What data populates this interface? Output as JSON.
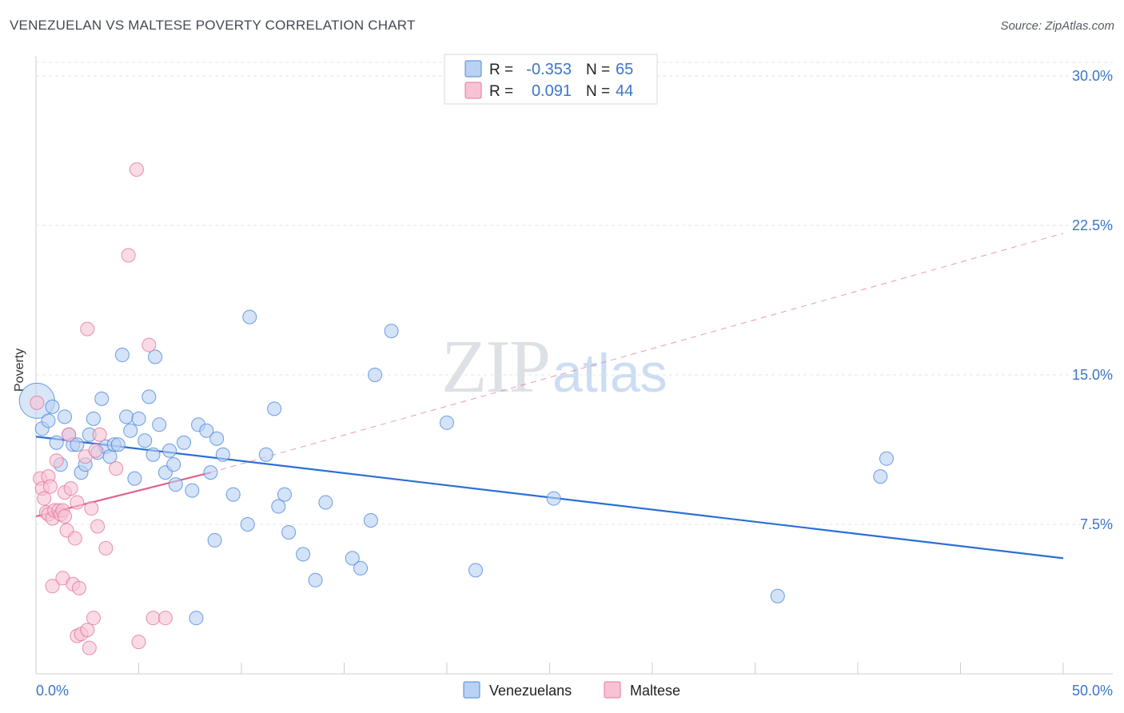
{
  "title": "VENEZUELAN VS MALTESE POVERTY CORRELATION CHART",
  "source": "Source: ZipAtlas.com",
  "watermark": {
    "zip": "ZIP",
    "atlas": "atlas"
  },
  "colors": {
    "blue": "#4a86e0",
    "blue_fill": "#b9d1f3",
    "pink": "#e4749c",
    "pink_fill": "#f7c3d4",
    "axis_text": "#3b76c8",
    "blue_line": "#2a6fd6",
    "pink_line": "#e06090"
  },
  "stats": [
    {
      "series": "Venezuelans",
      "r_label": "R =",
      "r_value": "-0.353",
      "n_label": "N =",
      "n_value": "65"
    },
    {
      "series": "Maltese",
      "r_label": "R =",
      "r_value": "0.091",
      "n_label": "N =",
      "n_value": "44"
    }
  ],
  "chart_data": {
    "type": "scatter",
    "title": "VENEZUELAN VS MALTESE POVERTY CORRELATION CHART",
    "xlabel": "",
    "ylabel": "Poverty",
    "xlim": [
      0,
      50
    ],
    "ylim": [
      0,
      31
    ],
    "x_tick_labels": [
      {
        "value": 0,
        "label": "0.0%"
      },
      {
        "value": 50,
        "label": "50.0%"
      }
    ],
    "y_tick_labels": [
      {
        "value": 7.5,
        "label": "7.5%"
      },
      {
        "value": 15,
        "label": "15.0%"
      },
      {
        "value": 22.5,
        "label": "22.5%"
      },
      {
        "value": 30,
        "label": "30.0%"
      }
    ],
    "legend": [
      "Venezuelans",
      "Maltese"
    ],
    "series": [
      {
        "name": "Venezuelans",
        "points": [
          [
            0.05,
            13.7
          ],
          [
            0.3,
            12.3
          ],
          [
            0.6,
            12.7
          ],
          [
            0.8,
            13.4
          ],
          [
            1.0,
            11.6
          ],
          [
            1.2,
            10.5
          ],
          [
            1.4,
            12.9
          ],
          [
            1.6,
            12.0
          ],
          [
            1.8,
            11.5
          ],
          [
            2.0,
            11.5
          ],
          [
            2.2,
            10.1
          ],
          [
            2.4,
            10.5
          ],
          [
            2.6,
            12.0
          ],
          [
            2.8,
            12.8
          ],
          [
            3.0,
            11.1
          ],
          [
            3.2,
            13.8
          ],
          [
            3.4,
            11.4
          ],
          [
            3.6,
            10.9
          ],
          [
            3.8,
            11.5
          ],
          [
            4.0,
            11.5
          ],
          [
            4.2,
            16.0
          ],
          [
            4.4,
            12.9
          ],
          [
            4.6,
            12.2
          ],
          [
            4.8,
            9.8
          ],
          [
            5.0,
            12.8
          ],
          [
            5.3,
            11.7
          ],
          [
            5.5,
            13.9
          ],
          [
            5.7,
            11.0
          ],
          [
            5.8,
            15.9
          ],
          [
            6.0,
            12.5
          ],
          [
            6.3,
            10.1
          ],
          [
            6.5,
            11.2
          ],
          [
            6.7,
            10.5
          ],
          [
            6.8,
            9.5
          ],
          [
            7.2,
            11.6
          ],
          [
            7.6,
            9.2
          ],
          [
            7.8,
            2.8
          ],
          [
            7.9,
            12.5
          ],
          [
            8.3,
            12.2
          ],
          [
            8.5,
            10.1
          ],
          [
            8.7,
            6.7
          ],
          [
            8.8,
            11.8
          ],
          [
            9.1,
            11.0
          ],
          [
            9.6,
            9.0
          ],
          [
            10.3,
            7.5
          ],
          [
            10.4,
            17.9
          ],
          [
            11.2,
            11.0
          ],
          [
            11.6,
            13.3
          ],
          [
            11.8,
            8.4
          ],
          [
            12.1,
            9.0
          ],
          [
            12.3,
            7.1
          ],
          [
            13.0,
            6.0
          ],
          [
            13.6,
            4.7
          ],
          [
            14.1,
            8.6
          ],
          [
            15.4,
            5.8
          ],
          [
            15.8,
            5.3
          ],
          [
            16.3,
            7.7
          ],
          [
            16.5,
            15.0
          ],
          [
            17.3,
            17.2
          ],
          [
            20.0,
            12.6
          ],
          [
            21.4,
            5.2
          ],
          [
            25.2,
            8.8
          ],
          [
            36.1,
            3.9
          ],
          [
            41.1,
            9.9
          ],
          [
            41.4,
            10.8
          ]
        ]
      },
      {
        "name": "Maltese",
        "points": [
          [
            0.05,
            13.6
          ],
          [
            0.2,
            9.8
          ],
          [
            0.3,
            9.3
          ],
          [
            0.4,
            8.8
          ],
          [
            0.5,
            8.1
          ],
          [
            0.6,
            9.9
          ],
          [
            0.6,
            8.0
          ],
          [
            0.7,
            9.4
          ],
          [
            0.8,
            7.8
          ],
          [
            0.9,
            8.2
          ],
          [
            0.8,
            4.4
          ],
          [
            1.0,
            10.7
          ],
          [
            1.1,
            8.2
          ],
          [
            1.2,
            8.0
          ],
          [
            1.3,
            8.2
          ],
          [
            1.4,
            7.9
          ],
          [
            1.3,
            4.8
          ],
          [
            1.4,
            9.1
          ],
          [
            1.5,
            7.2
          ],
          [
            1.6,
            12.0
          ],
          [
            1.7,
            9.3
          ],
          [
            1.8,
            4.5
          ],
          [
            1.9,
            6.8
          ],
          [
            2.0,
            8.6
          ],
          [
            2.0,
            1.9
          ],
          [
            2.1,
            4.3
          ],
          [
            2.2,
            2.0
          ],
          [
            2.4,
            10.9
          ],
          [
            2.5,
            2.2
          ],
          [
            2.5,
            17.3
          ],
          [
            2.6,
            1.3
          ],
          [
            2.7,
            8.3
          ],
          [
            2.8,
            2.8
          ],
          [
            2.9,
            11.2
          ],
          [
            3.0,
            7.4
          ],
          [
            3.1,
            12.0
          ],
          [
            3.4,
            6.3
          ],
          [
            3.9,
            10.3
          ],
          [
            4.5,
            21.0
          ],
          [
            4.9,
            25.3
          ],
          [
            5.0,
            1.6
          ],
          [
            5.5,
            16.5
          ],
          [
            5.7,
            2.8
          ],
          [
            6.3,
            2.8
          ]
        ]
      }
    ],
    "trend_lines": [
      {
        "series": "Venezuelans",
        "style": "solid",
        "from": [
          0,
          11.9
        ],
        "to": [
          50,
          5.8
        ]
      },
      {
        "series": "Maltese",
        "style": "solid",
        "from": [
          0,
          7.9
        ],
        "to": [
          8.5,
          10.1
        ]
      },
      {
        "series": "Maltese",
        "style": "dashed",
        "from": [
          8.5,
          10.1
        ],
        "to": [
          50,
          22.1
        ]
      }
    ]
  }
}
